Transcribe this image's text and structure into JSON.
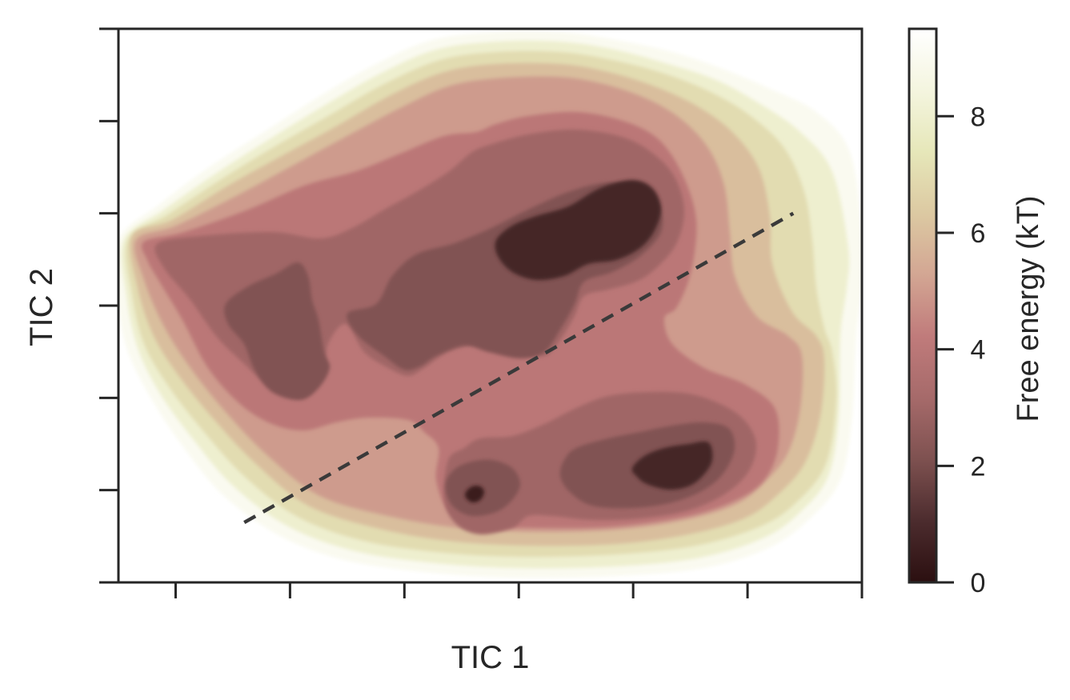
{
  "chart_data": {
    "type": "heatmap",
    "title": "",
    "xlabel": "TIC 1",
    "ylabel": "TIC 2",
    "x_tick_labels_shown": false,
    "y_tick_labels_shown": false,
    "colorbar": {
      "label": "Free energy (kT)",
      "range": [
        0,
        9.5
      ],
      "ticks": [
        0,
        2,
        4,
        6,
        8
      ],
      "tick_labels": [
        "0",
        "2",
        "4",
        "6",
        "8"
      ],
      "colormap": [
        "#2b0f10",
        "#4c2c2e",
        "#7e5150",
        "#a66a6a",
        "#c07b7b",
        "#d3a693",
        "#dcc9a2",
        "#e6e7b9",
        "#f4f5df",
        "#ffffff"
      ]
    },
    "contour_levels": [
      0,
      1,
      2,
      3,
      4,
      5,
      6,
      7,
      8,
      9
    ],
    "wells": [
      {
        "name": "upper-right well",
        "center_tic1": 1.75,
        "center_tic2": 1.35,
        "min_free_energy": 0.8
      },
      {
        "name": "upper-left well",
        "center_tic1": -2.1,
        "center_tic2": 0.0,
        "min_free_energy": 2.4
      },
      {
        "name": "upper-middle well",
        "center_tic1": -0.2,
        "center_tic2": 0.3,
        "min_free_energy": 2.6
      },
      {
        "name": "lower-right well",
        "center_tic1": 2.5,
        "center_tic2": -1.8,
        "min_free_energy": 0.8
      },
      {
        "name": "lower-left well",
        "center_tic1": 0.4,
        "center_tic2": -2.1,
        "min_free_energy": 0.9
      }
    ],
    "dividing_line": {
      "style": "dashed",
      "color": "#3a3a3a",
      "x": [
        -1.9,
        2.9
      ],
      "y": [
        -2.35,
        1.0
      ]
    },
    "xlim": [
      -3.0,
      3.5
    ],
    "ylim": [
      -3.0,
      3.0
    ],
    "grid": false
  }
}
